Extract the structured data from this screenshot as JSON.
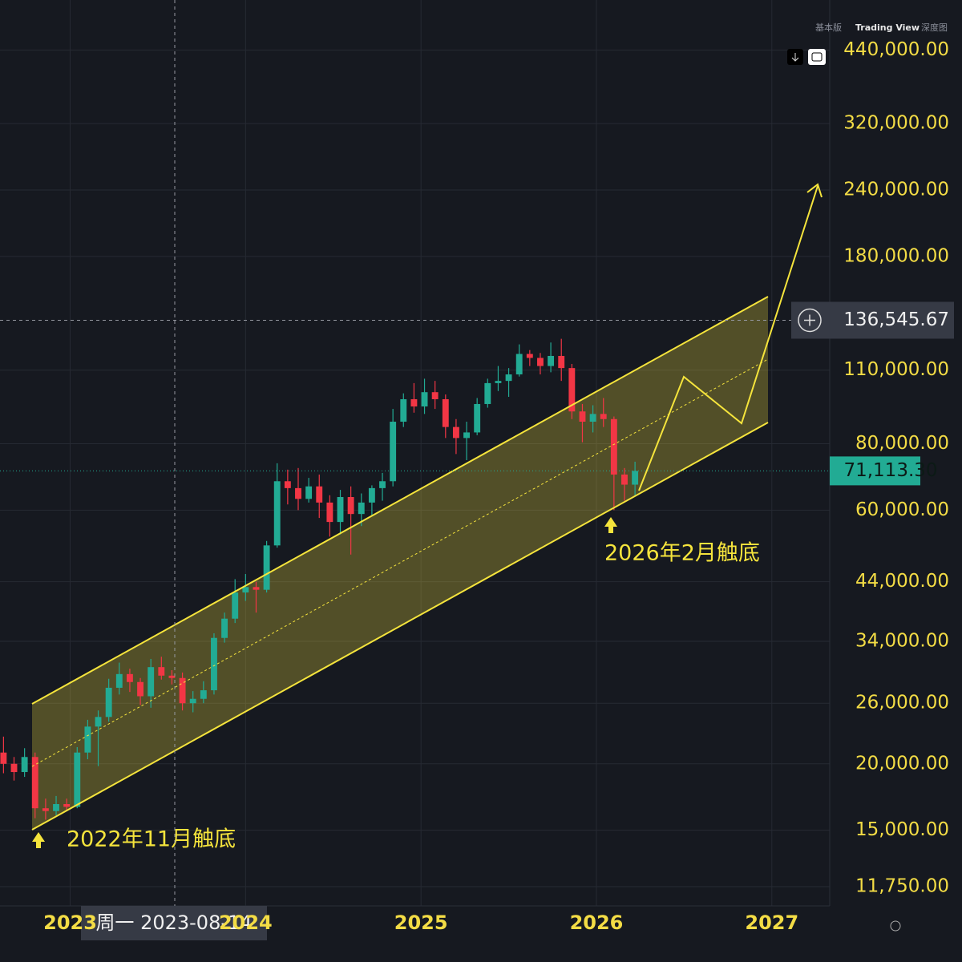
{
  "toolbar": {
    "tabs": [
      "基本版",
      "Trading View",
      "深度图"
    ]
  },
  "chart_data": {
    "type": "candlestick",
    "log_scale": true,
    "grid": true,
    "up_color": "#22ab94",
    "down_color": "#f23645",
    "annotations": [
      "2022年11月触底",
      "2026年2月触底"
    ],
    "crosshair": {
      "x_label": "周一 2023-08-14",
      "price": 136545.67,
      "price_label": "136,545.67"
    },
    "current_price": {
      "value": 71113.3,
      "label": "71,113.30"
    },
    "xlim": [
      2022.6,
      2027.33
    ],
    "xticks": [
      2023,
      2024,
      2025,
      2026,
      2027
    ],
    "ylim": [
      10810,
      546500
    ],
    "yticks": [
      {
        "value": 11750,
        "label": "11,750.00"
      },
      {
        "value": 15000,
        "label": "15,000.00"
      },
      {
        "value": 20000,
        "label": "20,000.00"
      },
      {
        "value": 26000,
        "label": "26,000.00"
      },
      {
        "value": 34000,
        "label": "34,000.00"
      },
      {
        "value": 44000,
        "label": "44,000.00"
      },
      {
        "value": 60000,
        "label": "60,000.00"
      },
      {
        "value": 80000,
        "label": "80,000.00"
      },
      {
        "value": 110000,
        "label": "110,000.00"
      },
      {
        "value": 180000,
        "label": "180,000.00"
      },
      {
        "value": 240000,
        "label": "240,000.00"
      },
      {
        "value": 320000,
        "label": "320,000.00"
      },
      {
        "value": 440000,
        "label": "440,000.00"
      }
    ],
    "x": [
      2022.62,
      2022.68,
      2022.74,
      2022.8,
      2022.86,
      2022.92,
      2022.98,
      2023.04,
      2023.1,
      2023.16,
      2023.22,
      2023.28,
      2023.34,
      2023.4,
      2023.46,
      2023.52,
      2023.58,
      2023.64,
      2023.7,
      2023.76,
      2023.82,
      2023.88,
      2023.94,
      2024.0,
      2024.06,
      2024.12,
      2024.18,
      2024.24,
      2024.3,
      2024.36,
      2024.42,
      2024.48,
      2024.54,
      2024.6,
      2024.66,
      2024.72,
      2024.78,
      2024.84,
      2024.9,
      2024.96,
      2025.02,
      2025.08,
      2025.14,
      2025.2,
      2025.26,
      2025.32,
      2025.38,
      2025.44,
      2025.5,
      2025.56,
      2025.62,
      2025.68,
      2025.74,
      2025.8,
      2025.86,
      2025.92,
      2025.98,
      2026.04,
      2026.1,
      2026.16,
      2026.22
    ],
    "open": [
      21000,
      20000,
      19300,
      20600,
      16500,
      16300,
      16800,
      16600,
      21000,
      23500,
      24500,
      27800,
      29500,
      28500,
      26800,
      30400,
      29300,
      29000,
      26000,
      26500,
      27500,
      34500,
      37500,
      42000,
      43000,
      42500,
      51500,
      68000,
      66000,
      63000,
      66500,
      62000,
      57000,
      63500,
      59000,
      62000,
      66000,
      68000,
      88000,
      97000,
      94000,
      100000,
      97000,
      86000,
      82000,
      84000,
      95000,
      104000,
      105000,
      108000,
      118000,
      116000,
      112000,
      117000,
      111000,
      92000,
      88000,
      91000,
      89000,
      70000,
      67000
    ],
    "high": [
      22500,
      20600,
      21400,
      21000,
      17200,
      17400,
      17200,
      21500,
      24200,
      25200,
      28900,
      31000,
      30200,
      29000,
      31500,
      31800,
      30000,
      29700,
      27400,
      28600,
      35200,
      38500,
      44500,
      45500,
      44000,
      52500,
      73500,
      71500,
      72000,
      69000,
      70000,
      64000,
      65500,
      66500,
      64500,
      66800,
      70500,
      93000,
      99500,
      104000,
      106000,
      105000,
      99000,
      89000,
      88000,
      97500,
      106000,
      112000,
      111000,
      123000,
      120000,
      118500,
      124000,
      126000,
      113000,
      95000,
      94500,
      97500,
      90000,
      72000,
      74000
    ],
    "low": [
      19200,
      18600,
      18900,
      15800,
      15700,
      16000,
      16300,
      16500,
      20400,
      19800,
      24000,
      27000,
      27300,
      25800,
      25500,
      28800,
      28200,
      25200,
      25000,
      26000,
      27000,
      33800,
      36800,
      40500,
      38500,
      42000,
      51000,
      61500,
      60000,
      62000,
      58000,
      53500,
      54000,
      49500,
      56000,
      58500,
      62500,
      66500,
      86000,
      91500,
      91000,
      93000,
      82000,
      76500,
      74500,
      83000,
      93500,
      100500,
      98000,
      107000,
      112000,
      108000,
      109000,
      105000,
      89000,
      80500,
      84000,
      86000,
      60000,
      62500,
      64000
    ],
    "close": [
      20000,
      19300,
      20600,
      16500,
      16300,
      16800,
      16600,
      21000,
      23500,
      24500,
      27800,
      29500,
      28500,
      26800,
      30400,
      29300,
      29000,
      26000,
      26500,
      27500,
      34500,
      37500,
      42000,
      43000,
      42500,
      51500,
      68000,
      66000,
      63000,
      66500,
      62000,
      57000,
      63500,
      59000,
      62000,
      66000,
      68000,
      88000,
      97000,
      94000,
      100000,
      97000,
      86000,
      82000,
      84000,
      95000,
      104000,
      105000,
      108000,
      118000,
      116000,
      112000,
      117000,
      111000,
      92000,
      88000,
      91000,
      89000,
      70000,
      67000,
      71113.3
    ]
  }
}
